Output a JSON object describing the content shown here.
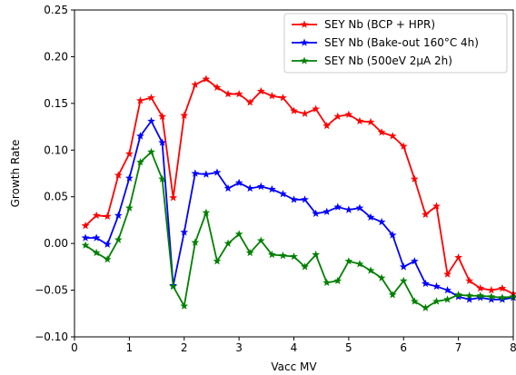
{
  "chart_data": {
    "type": "line",
    "title": "",
    "xlabel": "Vacc MV",
    "ylabel": "Growth Rate",
    "xlim": [
      0,
      8
    ],
    "ylim": [
      -0.1,
      0.25
    ],
    "xticks": [
      0,
      1,
      2,
      3,
      4,
      5,
      6,
      7,
      8
    ],
    "xtick_labels": [
      "0",
      "1",
      "2",
      "3",
      "4",
      "5",
      "6",
      "7",
      "8"
    ],
    "yticks": [
      -0.1,
      -0.05,
      0.0,
      0.05,
      0.1,
      0.15,
      0.2,
      0.25
    ],
    "ytick_labels": [
      "−0.10",
      "−0.05",
      "0.00",
      "0.05",
      "0.10",
      "0.15",
      "0.20",
      "0.25"
    ],
    "grid": false,
    "legend_position": "top-right",
    "marker": "star",
    "x": [
      0.2,
      0.4,
      0.6,
      0.8,
      1.0,
      1.2,
      1.4,
      1.6,
      1.8,
      2.0,
      2.2,
      2.4,
      2.6,
      2.8,
      3.0,
      3.2,
      3.4,
      3.6,
      3.8,
      4.0,
      4.2,
      4.4,
      4.6,
      4.8,
      5.0,
      5.2,
      5.4,
      5.6,
      5.8,
      6.0,
      6.2,
      6.4,
      6.6,
      6.8,
      7.0,
      7.2,
      7.4,
      7.6,
      7.8,
      8.0
    ],
    "series": [
      {
        "name": "SEY Nb (BCP + HPR)",
        "color": "#ff0000",
        "values": [
          0.019,
          0.03,
          0.029,
          0.073,
          0.096,
          0.153,
          0.156,
          0.136,
          0.049,
          0.137,
          0.17,
          0.176,
          0.167,
          0.16,
          0.16,
          0.151,
          0.163,
          0.158,
          0.156,
          0.142,
          0.139,
          0.144,
          0.126,
          0.136,
          0.138,
          0.131,
          0.13,
          0.119,
          0.115,
          0.104,
          0.069,
          0.031,
          0.04,
          -0.033,
          -0.015,
          -0.04,
          -0.048,
          -0.05,
          -0.048,
          -0.054
        ]
      },
      {
        "name": "SEY Nb (Bake-out 160°C 4h)",
        "color": "#0000ff",
        "values": [
          0.006,
          0.006,
          -0.001,
          0.03,
          0.07,
          0.115,
          0.131,
          0.108,
          -0.045,
          0.012,
          0.075,
          0.074,
          0.076,
          0.059,
          0.065,
          0.059,
          0.061,
          0.058,
          0.053,
          0.047,
          0.047,
          0.032,
          0.034,
          0.039,
          0.036,
          0.038,
          0.028,
          0.023,
          0.009,
          -0.025,
          -0.019,
          -0.043,
          -0.046,
          -0.05,
          -0.057,
          -0.06,
          -0.058,
          -0.06,
          -0.06,
          -0.058
        ]
      },
      {
        "name": "SEY Nb (500eV 2μA 2h)",
        "color": "#008000",
        "values": [
          -0.002,
          -0.01,
          -0.017,
          0.004,
          0.038,
          0.087,
          0.098,
          0.069,
          -0.046,
          -0.067,
          0.001,
          0.033,
          -0.019,
          0.0,
          0.01,
          -0.01,
          0.003,
          -0.012,
          -0.013,
          -0.014,
          -0.025,
          -0.012,
          -0.042,
          -0.04,
          -0.019,
          -0.022,
          -0.029,
          -0.037,
          -0.055,
          -0.04,
          -0.062,
          -0.069,
          -0.062,
          -0.06,
          -0.055,
          -0.056,
          -0.056,
          -0.057,
          -0.058,
          -0.057
        ]
      }
    ]
  }
}
